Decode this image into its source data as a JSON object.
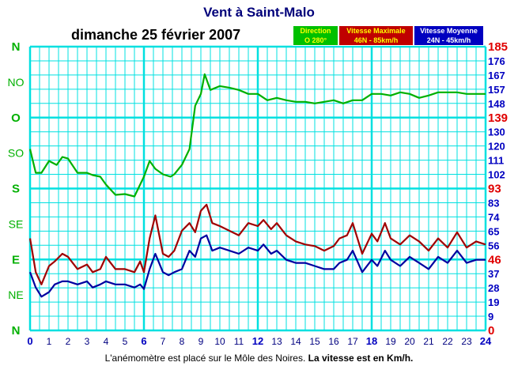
{
  "header": {
    "title": "Vent à Saint-Malo",
    "date": "dimanche 25 février 2007"
  },
  "legend": {
    "direction": {
      "label": "Direction",
      "value": "O 280°"
    },
    "max": {
      "label": "Vitesse Maximale",
      "value": "46N - 85km/h"
    },
    "moy": {
      "label": "Vitesse Moyenne",
      "value": "24N - 45km/h"
    }
  },
  "footer": {
    "text": "L'anémomètre est placé sur le Môle des Noires.",
    "bold": "La vitesse est en Km/h."
  },
  "colors": {
    "grid": "#00e0e0",
    "direction": "#00b000",
    "max": "#a00000",
    "moy": "#0000a0",
    "axis_blue": "#0000c0",
    "axis_red": "#e00000"
  },
  "chart_data": {
    "type": "line",
    "x_ticks": [
      "0",
      "1",
      "2",
      "3",
      "4",
      "5",
      "6",
      "7",
      "8",
      "9",
      "10",
      "11",
      "12",
      "13",
      "14",
      "15",
      "16",
      "17",
      "18",
      "19",
      "20",
      "21",
      "22",
      "23",
      "24"
    ],
    "xlim": [
      0,
      24
    ],
    "y_left_ticks": [
      "N",
      "NE",
      "E",
      "SE",
      "S",
      "SO",
      "O",
      "NO",
      "N"
    ],
    "y_right_ticks": [
      "0",
      "9",
      "19",
      "28",
      "37",
      "46",
      "56",
      "65",
      "74",
      "83",
      "93",
      "102",
      "111",
      "120",
      "130",
      "139",
      "148",
      "157",
      "167",
      "176",
      "185"
    ],
    "speed_ylim": [
      0,
      185
    ],
    "direction_ylim": [
      0,
      360
    ],
    "series": [
      {
        "name": "Direction",
        "x": [
          0,
          0.3,
          0.6,
          1,
          1.4,
          1.7,
          2,
          2.5,
          3,
          3.3,
          3.7,
          4,
          4.5,
          5,
          5.5,
          6,
          6.3,
          6.6,
          7,
          7.4,
          7.6,
          8,
          8.4,
          8.7,
          9,
          9.2,
          9.5,
          10,
          10.5,
          11,
          11.5,
          12,
          12.5,
          13,
          13.5,
          14,
          14.5,
          15,
          15.5,
          16,
          16.5,
          17,
          17.5,
          18,
          18.5,
          19,
          19.5,
          20,
          20.5,
          21,
          21.5,
          22,
          22.5,
          23,
          23.5,
          24
        ],
        "values": [
          230,
          200,
          200,
          215,
          210,
          220,
          218,
          200,
          200,
          197,
          195,
          185,
          172,
          173,
          170,
          195,
          215,
          205,
          198,
          195,
          198,
          210,
          230,
          285,
          300,
          325,
          305,
          310,
          308,
          305,
          300,
          300,
          292,
          295,
          292,
          290,
          290,
          288,
          290,
          292,
          288,
          292,
          292,
          300,
          300,
          298,
          302,
          300,
          295,
          298,
          302,
          302,
          302,
          300,
          300,
          300
        ]
      },
      {
        "name": "Vitesse Maximale",
        "x": [
          0,
          0.3,
          0.6,
          1,
          1.3,
          1.7,
          2,
          2.5,
          3,
          3.3,
          3.7,
          4,
          4.5,
          5,
          5.5,
          5.8,
          6,
          6.3,
          6.6,
          7,
          7.3,
          7.6,
          8,
          8.4,
          8.7,
          9,
          9.3,
          9.6,
          10,
          10.5,
          11,
          11.5,
          12,
          12.3,
          12.7,
          13,
          13.5,
          14,
          14.5,
          15,
          15.5,
          16,
          16.3,
          16.7,
          17,
          17.5,
          18,
          18.3,
          18.7,
          19,
          19.5,
          20,
          20.5,
          21,
          21.5,
          22,
          22.5,
          23,
          23.5,
          24
        ],
        "values": [
          60,
          38,
          30,
          42,
          45,
          50,
          48,
          40,
          43,
          38,
          40,
          48,
          40,
          40,
          38,
          45,
          38,
          60,
          75,
          50,
          48,
          52,
          65,
          70,
          64,
          78,
          82,
          70,
          68,
          65,
          62,
          70,
          68,
          72,
          66,
          70,
          62,
          58,
          56,
          55,
          52,
          55,
          60,
          62,
          70,
          50,
          63,
          58,
          70,
          60,
          56,
          62,
          58,
          52,
          60,
          54,
          64,
          54,
          58,
          56
        ]
      },
      {
        "name": "Vitesse Moyenne",
        "x": [
          0,
          0.3,
          0.6,
          1,
          1.3,
          1.7,
          2,
          2.5,
          3,
          3.3,
          3.7,
          4,
          4.5,
          5,
          5.5,
          5.8,
          6,
          6.3,
          6.6,
          7,
          7.3,
          7.6,
          8,
          8.4,
          8.7,
          9,
          9.3,
          9.6,
          10,
          10.5,
          11,
          11.5,
          12,
          12.3,
          12.7,
          13,
          13.5,
          14,
          14.5,
          15,
          15.5,
          16,
          16.3,
          16.7,
          17,
          17.5,
          18,
          18.3,
          18.7,
          19,
          19.5,
          20,
          20.5,
          21,
          21.5,
          22,
          22.5,
          23,
          23.5,
          24
        ],
        "values": [
          38,
          28,
          22,
          25,
          30,
          32,
          32,
          30,
          32,
          28,
          30,
          32,
          30,
          30,
          28,
          30,
          27,
          40,
          50,
          38,
          36,
          38,
          40,
          52,
          48,
          60,
          62,
          52,
          54,
          52,
          50,
          54,
          52,
          56,
          50,
          52,
          46,
          44,
          44,
          42,
          40,
          40,
          44,
          46,
          52,
          38,
          46,
          42,
          52,
          46,
          42,
          48,
          44,
          40,
          48,
          44,
          52,
          44,
          46,
          46
        ]
      }
    ]
  }
}
